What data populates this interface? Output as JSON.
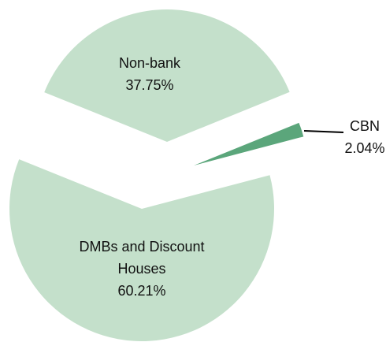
{
  "chart_data": {
    "type": "pie",
    "categories": [
      "Non-bank",
      "CBN",
      "DMBs and Discount Houses"
    ],
    "values": [
      37.75,
      2.04,
      60.21
    ],
    "value_labels": [
      "37.75%",
      "2.04%",
      "60.21%"
    ],
    "colors": [
      "#c4e0cb",
      "#5ba67b",
      "#c4e0cb"
    ]
  }
}
